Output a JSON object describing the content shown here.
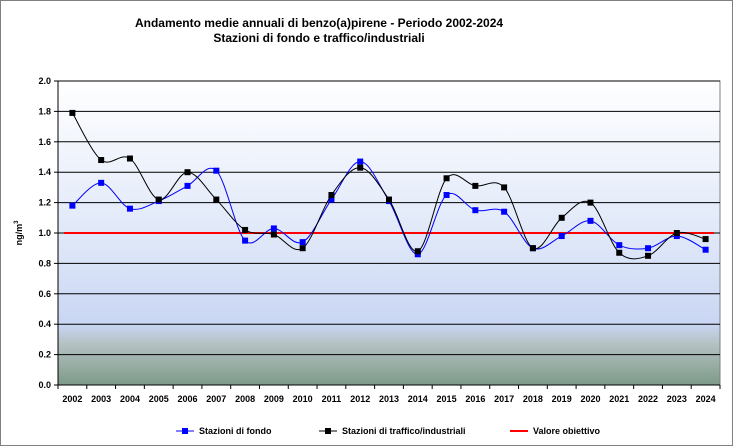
{
  "chart_data": {
    "type": "line",
    "title": "Andamento medie annuali di benzo(a)pirene - Periodo 2002-2024",
    "subtitle": "Stazioni di fondo e traffico/industriali",
    "ylabel": "ng/m3",
    "xlabel": "",
    "ylim": [
      0,
      2.0
    ],
    "yticks": [
      "0.0",
      "0.2",
      "0.4",
      "0.6",
      "0.8",
      "1.0",
      "1.2",
      "1.4",
      "1.6",
      "1.8",
      "2.0"
    ],
    "categories": [
      "2002",
      "2003",
      "2004",
      "2005",
      "2006",
      "2007",
      "2008",
      "2009",
      "2010",
      "2011",
      "2012",
      "2013",
      "2014",
      "2015",
      "2016",
      "2017",
      "2018",
      "2019",
      "2020",
      "2021",
      "2022",
      "2023",
      "2024"
    ],
    "grid": true,
    "legend_position": "bottom",
    "series": [
      {
        "name": "Stazioni di fondo",
        "color": "#0000ff",
        "marker": "square",
        "smooth": true,
        "values": [
          1.18,
          1.33,
          1.16,
          1.21,
          1.31,
          1.41,
          0.95,
          1.03,
          0.94,
          1.22,
          1.47,
          1.21,
          0.86,
          1.25,
          1.15,
          1.14,
          0.9,
          0.98,
          1.08,
          0.92,
          0.9,
          0.98,
          0.89
        ]
      },
      {
        "name": "Stazioni di traffico/industriali",
        "color": "#000000",
        "marker": "square",
        "smooth": true,
        "values": [
          1.79,
          1.48,
          1.49,
          1.22,
          1.4,
          1.22,
          1.02,
          0.99,
          0.9,
          1.25,
          1.43,
          1.22,
          0.88,
          1.36,
          1.31,
          1.3,
          0.9,
          1.1,
          1.2,
          0.87,
          0.85,
          1.0,
          0.96
        ]
      },
      {
        "name": "Valore obiettivo",
        "color": "#ff0000",
        "marker": "none",
        "smooth": false,
        "values": [
          1.0,
          1.0,
          1.0,
          1.0,
          1.0,
          1.0,
          1.0,
          1.0,
          1.0,
          1.0,
          1.0,
          1.0,
          1.0,
          1.0,
          1.0,
          1.0,
          1.0,
          1.0,
          1.0,
          1.0,
          1.0,
          1.0,
          1.0
        ]
      }
    ]
  }
}
